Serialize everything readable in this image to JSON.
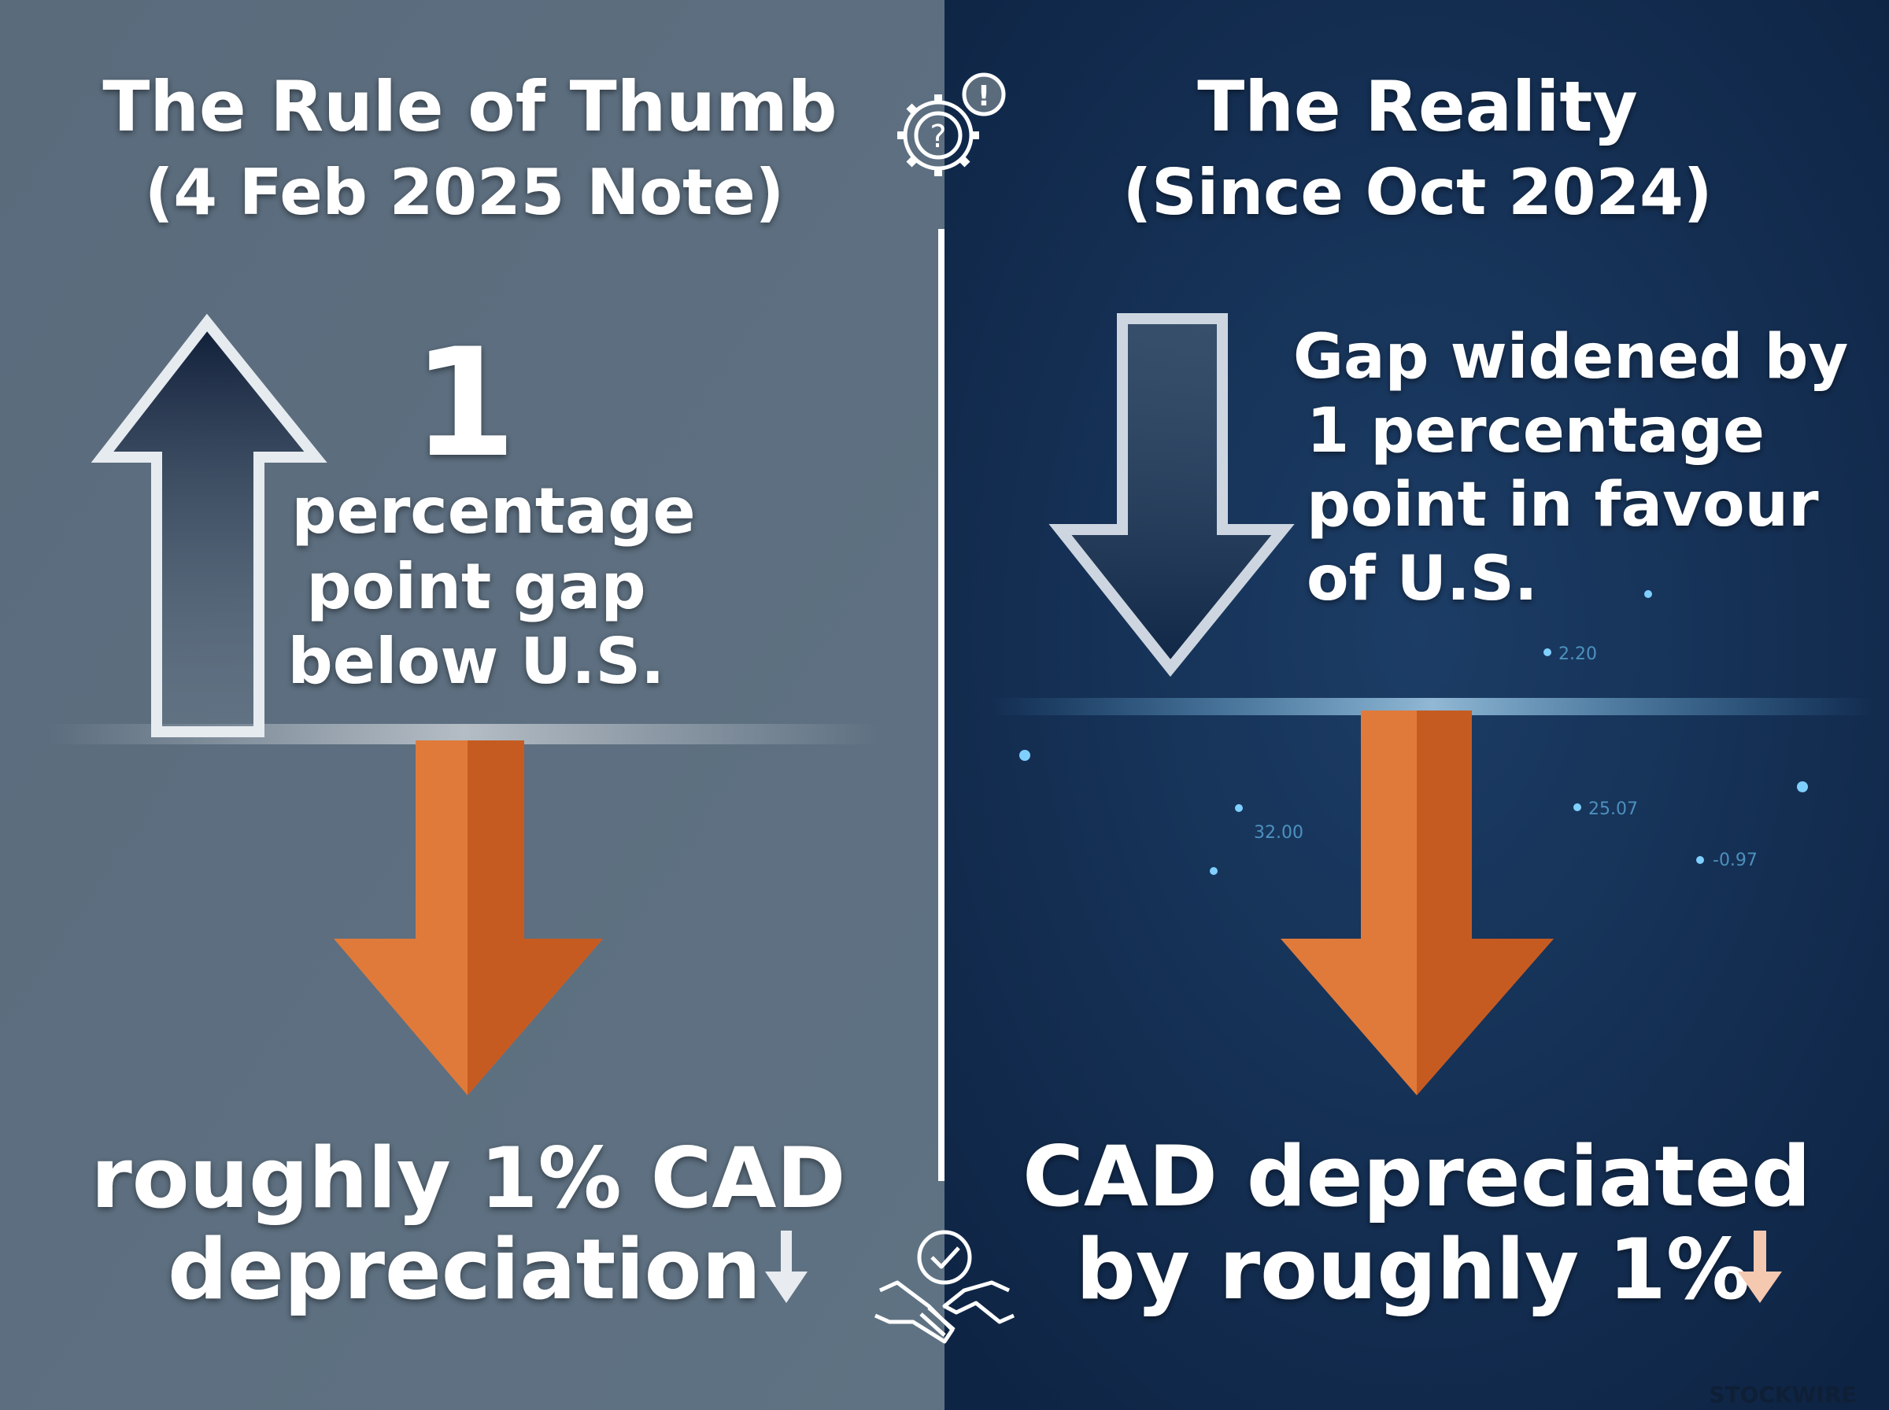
{
  "left": {
    "title": "The Rule of Thumb",
    "subtitle": "(4 Feb 2025 Note)",
    "big_number": "1",
    "body_lines": [
      "percentage",
      "point gap",
      "below U.S."
    ],
    "bottom_lines": [
      "roughly 1% CAD",
      "depreciation"
    ]
  },
  "right": {
    "title": "The Reality",
    "subtitle": "(Since Oct 2024)",
    "body_lines": [
      "Gap widened by",
      "1 percentage",
      "point in favour",
      "of U.S."
    ],
    "bottom_lines": [
      "CAD depreciated",
      "by roughly 1%"
    ],
    "background_numbers": [
      "2.20",
      "25.07",
      "32.00",
      "-0.97"
    ]
  },
  "watermark": "STOCKWIRE"
}
